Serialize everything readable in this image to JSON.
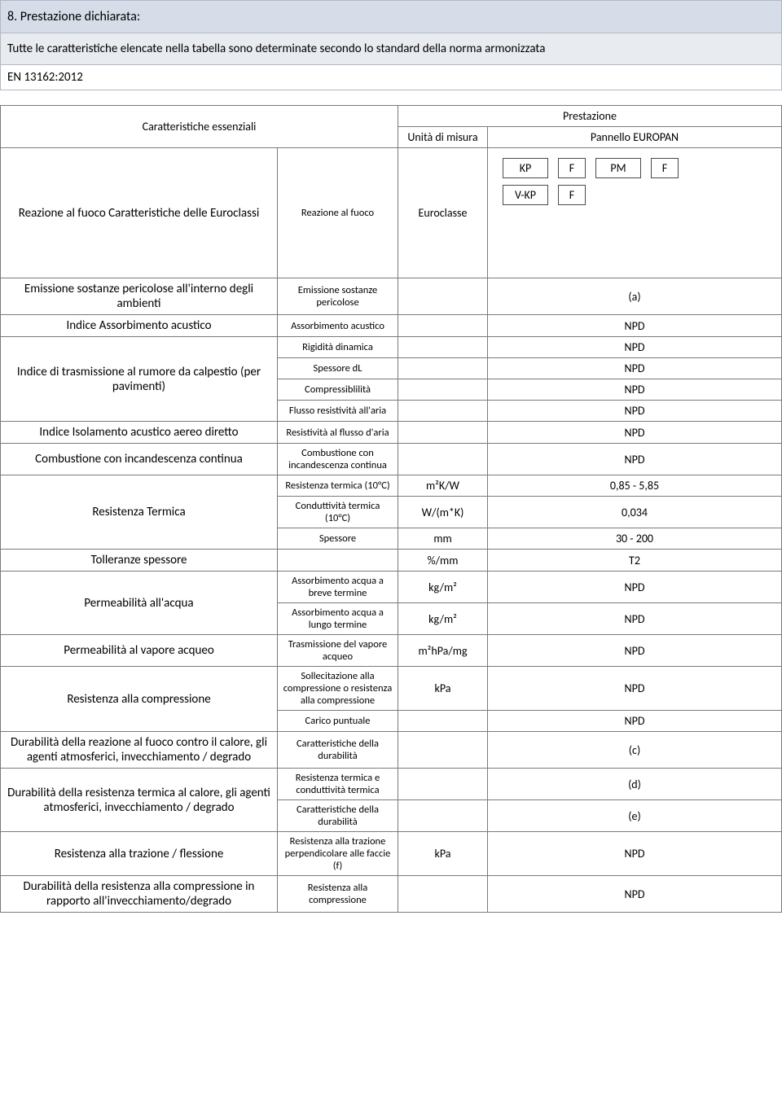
{
  "header": {
    "section_title": "8. Prestazione dichiarata:",
    "subtitle": "Tutte le caratteristiche elencate nella tabella sono determinate secondo lo standard della norma armonizzata",
    "standard": "EN 13162:2012"
  },
  "table": {
    "col_characteristics": "Caratteristiche essenziali",
    "col_performance": "Prestazione",
    "col_unit": "Unità di misura",
    "col_product": "Pannello EUROPAN",
    "fire": {
      "char": "Reazione al fuoco Caratteristiche delle Euroclassi",
      "param": "Reazione al fuoco",
      "unit": "Euroclasse",
      "badges": [
        [
          {
            "label": "KP"
          },
          {
            "label": "F"
          },
          {
            "label": "PM"
          },
          {
            "label": "F"
          }
        ],
        [
          {
            "label": "V-KP"
          },
          {
            "label": "F"
          }
        ]
      ]
    },
    "rows": [
      {
        "char": "Emissione sostanze pericolose all'interno degli ambienti",
        "param": "Emissione sostanze pericolose",
        "unit": "",
        "value": "(a)"
      },
      {
        "char": "Indice Assorbimento acustico",
        "param": "Assorbimento acustico",
        "unit": "",
        "value": "NPD"
      },
      {
        "char": "Indice di trasmissione al rumore da calpestio (per pavimenti)",
        "rowspan": 4,
        "param": "Rigidità dinamica",
        "unit": "",
        "value": "NPD"
      },
      {
        "param": "Spessore dL",
        "unit": "",
        "value": "NPD"
      },
      {
        "param": "Compressiblilità",
        "unit": "",
        "value": "NPD"
      },
      {
        "param": "Flusso resistività all'aria",
        "unit": "",
        "value": "NPD"
      },
      {
        "char": "Indice Isolamento acustico aereo diretto",
        "param": "Resistività al flusso d'aria",
        "unit": "",
        "value": "NPD"
      },
      {
        "char": "Combustione con incandescenza continua",
        "param": "Combustione con incandescenza continua",
        "unit": "",
        "value": "NPD"
      },
      {
        "char": "Resistenza Termica",
        "rowspan": 3,
        "param": "Resistenza termica (10°C)",
        "unit": "m²K/W",
        "value": "0,85 - 5,85"
      },
      {
        "param": "Conduttività termica (10°C)",
        "unit": "W/(m*K)",
        "value": "0,034"
      },
      {
        "param": "Spessore",
        "unit": "mm",
        "value": "30 - 200"
      },
      {
        "char": "Tolleranze spessore",
        "param": "",
        "unit": "%/mm",
        "value": "T2"
      },
      {
        "char": "Permeabilità all'acqua",
        "rowspan": 2,
        "param": "Assorbimento acqua a breve termine",
        "unit": "kg/m²",
        "value": "NPD"
      },
      {
        "param": "Assorbimento acqua a lungo termine",
        "unit": "kg/m²",
        "value": "NPD"
      },
      {
        "char": "Permeabilità al vapore acqueo",
        "param": "Trasmissione del vapore acqueo",
        "unit": "m²hPa/mg",
        "value": "NPD"
      },
      {
        "char": "Resistenza alla compressione",
        "rowspan": 2,
        "param": "Sollecitazione alla compressione o resistenza alla compressione",
        "unit": "kPa",
        "value": "NPD"
      },
      {
        "param": "Carico puntuale",
        "unit": "",
        "value": "NPD"
      },
      {
        "char": "Durabilità della reazione al fuoco contro il calore, gli agenti atmosferici, invecchiamento / degrado",
        "param": "Caratteristiche della durabilità",
        "unit": "",
        "value": "(c)"
      },
      {
        "char": "Durabilità della resistenza termica al calore, gli agenti atmosferici, invecchiamento / degrado",
        "rowspan": 2,
        "param": "Resistenza termica e conduttività termica",
        "unit": "",
        "value": "(d)"
      },
      {
        "param": "Caratteristiche della durabilità",
        "unit": "",
        "value": "(e)"
      },
      {
        "char": "Resistenza alla trazione / flessione",
        "param": "Resistenza alla trazione perpendicolare alle faccie (f)",
        "unit": "kPa",
        "value": "NPD"
      },
      {
        "char": "Durabilità della resistenza alla compressione in rapporto all'invecchiamento/degrado",
        "param": "Resistenza alla compressione",
        "unit": "",
        "value": "NPD"
      }
    ]
  },
  "colors": {
    "header_bg": "#d6dde8",
    "subheader_bg": "#e8ebef",
    "border": "#b0b8c4",
    "table_border": "#7a7a7a",
    "text": "#000000"
  }
}
